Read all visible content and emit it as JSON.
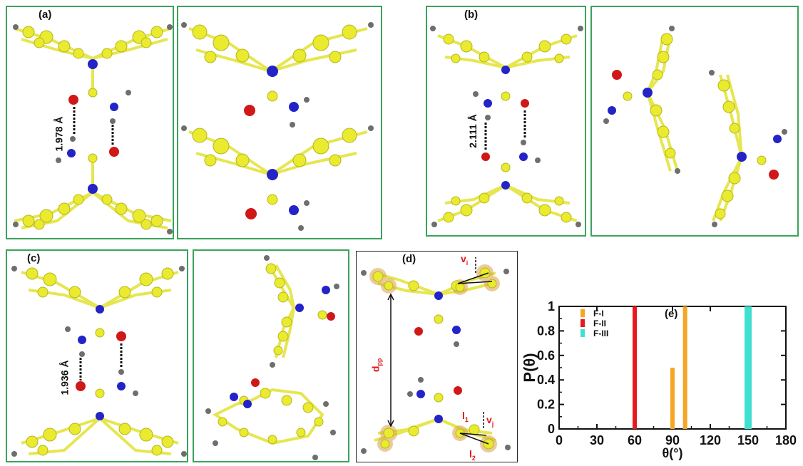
{
  "panels": {
    "a": {
      "label": "(a)",
      "distance": "1.978 Å"
    },
    "b": {
      "label": "(b)",
      "distance": "2.111 Å"
    },
    "c": {
      "label": "(c)",
      "distance": "1.936 Å"
    },
    "d": {
      "label": "(d)",
      "dpp": "d",
      "dpp_sub": "pp",
      "vi": "v",
      "vi_sub": "i",
      "vj": "v",
      "vj_sub": "j",
      "l1": "l",
      "l1_sub": "1",
      "l2": "l",
      "l2_sub": "2"
    },
    "e": {
      "label": "(e)"
    }
  },
  "colors": {
    "carbon": "#eaea2e",
    "nitrogen": "#2323c8",
    "oxygen": "#d01818",
    "hydrogen": "#6e6e6e",
    "frame": "#3aa35a",
    "highlight": "#d9a24a"
  },
  "chart_data": {
    "type": "bar",
    "xlabel": "θ(°)",
    "ylabel": "P(θ)",
    "xlim": [
      0,
      180
    ],
    "ylim": [
      0,
      1
    ],
    "xticks": [
      0,
      30,
      60,
      90,
      120,
      150,
      180
    ],
    "yticks": [
      0,
      0.2,
      0.4,
      0.6,
      0.8,
      1
    ],
    "xtick_labels": [
      "0",
      "30",
      "60",
      "90",
      "120",
      "150",
      "180"
    ],
    "ytick_labels": [
      "0",
      "0.2",
      "0.4",
      "0.6",
      "0.8",
      "1"
    ],
    "legend_position": "top-left",
    "series": [
      {
        "name": "F-I",
        "color": "#f5a623",
        "points": [
          {
            "x": 90,
            "y": 0.5
          },
          {
            "x": 100,
            "y": 1.0
          }
        ]
      },
      {
        "name": "F-II",
        "color": "#e8191e",
        "points": [
          {
            "x": 60,
            "y": 1.0
          }
        ]
      },
      {
        "name": "F-III",
        "color": "#40e0d0",
        "points": [
          {
            "x": 150,
            "y": 1.0
          }
        ]
      }
    ]
  }
}
